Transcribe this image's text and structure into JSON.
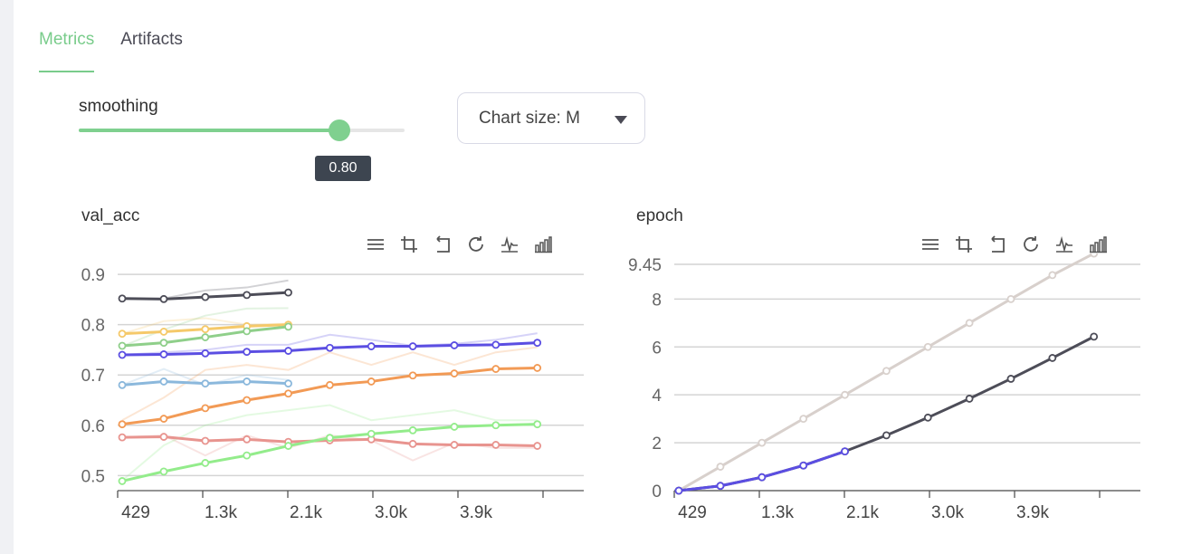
{
  "tabs": {
    "metrics": "Metrics",
    "artifacts": "Artifacts"
  },
  "smoothing": {
    "label": "smoothing",
    "value": 0.8,
    "value_label": "0.80"
  },
  "chart_size": {
    "label": "Chart size: M"
  },
  "colors": {
    "accent": "#79cc8b"
  },
  "toolbar_icons": [
    "menu-icon",
    "crop-icon",
    "undo-icon",
    "refresh-icon",
    "line-chart-icon",
    "bar-chart-icon"
  ],
  "chart_data": [
    {
      "title": "val_acc",
      "type": "line",
      "xticks": [
        "429",
        "1.3k",
        "2.1k",
        "3.0k",
        "3.9k"
      ],
      "xlim": [
        429,
        5100
      ],
      "ylim": [
        0.47,
        0.92
      ],
      "yticks": [
        0.5,
        0.6,
        0.7,
        0.8,
        0.9
      ],
      "series": [
        {
          "color": "#4d4d58",
          "x": [
            429,
            850,
            1270,
            1690,
            2110
          ],
          "y": [
            0.852,
            0.851,
            0.855,
            0.859,
            0.864
          ],
          "raw": [
            0.851,
            0.852,
            0.868,
            0.874,
            0.888
          ]
        },
        {
          "color": "#f5c96a",
          "x": [
            429,
            850,
            1270,
            1690,
            2110
          ],
          "y": [
            0.782,
            0.786,
            0.791,
            0.797,
            0.8
          ],
          "raw": [
            0.782,
            0.807,
            0.813,
            0.8,
            0.802
          ]
        },
        {
          "color": "#8fcf8a",
          "x": [
            429,
            850,
            1270,
            1690,
            2110
          ],
          "y": [
            0.758,
            0.764,
            0.775,
            0.787,
            0.796
          ],
          "raw": [
            0.757,
            0.79,
            0.818,
            0.832,
            0.833
          ]
        },
        {
          "color": "#5b4ee2",
          "x": [
            429,
            850,
            1270,
            1690,
            2110,
            2530,
            2950,
            3370,
            3790,
            4210,
            4630
          ],
          "y": [
            0.74,
            0.741,
            0.743,
            0.746,
            0.748,
            0.754,
            0.757,
            0.757,
            0.759,
            0.76,
            0.764
          ],
          "raw": [
            0.74,
            0.745,
            0.75,
            0.76,
            0.76,
            0.78,
            0.77,
            0.758,
            0.762,
            0.77,
            0.783
          ]
        },
        {
          "color": "#8bb8dc",
          "x": [
            429,
            850,
            1270,
            1690,
            2110
          ],
          "y": [
            0.68,
            0.687,
            0.683,
            0.687,
            0.683
          ],
          "raw": [
            0.68,
            0.712,
            0.68,
            0.7,
            0.69
          ]
        },
        {
          "color": "#f29a55",
          "x": [
            429,
            850,
            1270,
            1690,
            2110,
            2530,
            2950,
            3370,
            3790,
            4210,
            4630
          ],
          "y": [
            0.602,
            0.613,
            0.634,
            0.65,
            0.663,
            0.68,
            0.687,
            0.699,
            0.703,
            0.712,
            0.714
          ],
          "raw": [
            0.61,
            0.655,
            0.71,
            0.72,
            0.71,
            0.745,
            0.72,
            0.745,
            0.72,
            0.745,
            0.755
          ]
        },
        {
          "color": "#e8948f",
          "x": [
            429,
            850,
            1270,
            1690,
            2110,
            2530,
            2950,
            3370,
            3790,
            4210,
            4630
          ],
          "y": [
            0.576,
            0.577,
            0.569,
            0.572,
            0.567,
            0.57,
            0.572,
            0.563,
            0.561,
            0.561,
            0.559
          ],
          "raw": [
            0.576,
            0.58,
            0.54,
            0.58,
            0.555,
            0.58,
            0.57,
            0.53,
            0.565,
            0.555,
            0.555
          ]
        },
        {
          "color": "#93ec8b",
          "x": [
            429,
            850,
            1270,
            1690,
            2110,
            2530,
            2950,
            3370,
            3790,
            4210,
            4630
          ],
          "y": [
            0.489,
            0.508,
            0.525,
            0.54,
            0.559,
            0.575,
            0.583,
            0.59,
            0.597,
            0.6,
            0.602
          ],
          "raw": [
            0.49,
            0.56,
            0.6,
            0.62,
            0.63,
            0.64,
            0.61,
            0.62,
            0.63,
            0.61,
            0.61
          ]
        }
      ]
    },
    {
      "title": "epoch",
      "type": "line",
      "xticks": [
        "429",
        "1.3k",
        "2.1k",
        "3.0k",
        "3.9k"
      ],
      "xlim": [
        429,
        5100
      ],
      "ylim": [
        0,
        9.45
      ],
      "yticks": [
        0,
        2,
        4,
        6,
        8,
        9.45
      ],
      "series": [
        {
          "color": "#d8d0cc",
          "x": [
            429,
            850,
            1270,
            1690,
            2110,
            2530,
            2950,
            3370,
            3790,
            4210,
            4630
          ],
          "y": [
            0,
            1,
            2,
            3,
            4,
            5,
            6,
            7,
            8,
            9,
            9.9
          ],
          "raw": null
        },
        {
          "color": "#4d4d58",
          "x": [
            429,
            850,
            1270,
            1690,
            2110,
            2530,
            2950,
            3370,
            3790,
            4210,
            4630
          ],
          "y": [
            0,
            0.2,
            0.56,
            1.05,
            1.64,
            2.31,
            3.05,
            3.84,
            4.67,
            5.54,
            6.43
          ],
          "raw": null
        },
        {
          "color": "#5b4ee2",
          "x": [
            429,
            850,
            1270,
            1690,
            2110
          ],
          "y": [
            0,
            0.2,
            0.56,
            1.05,
            1.64
          ],
          "raw": null
        }
      ]
    }
  ]
}
